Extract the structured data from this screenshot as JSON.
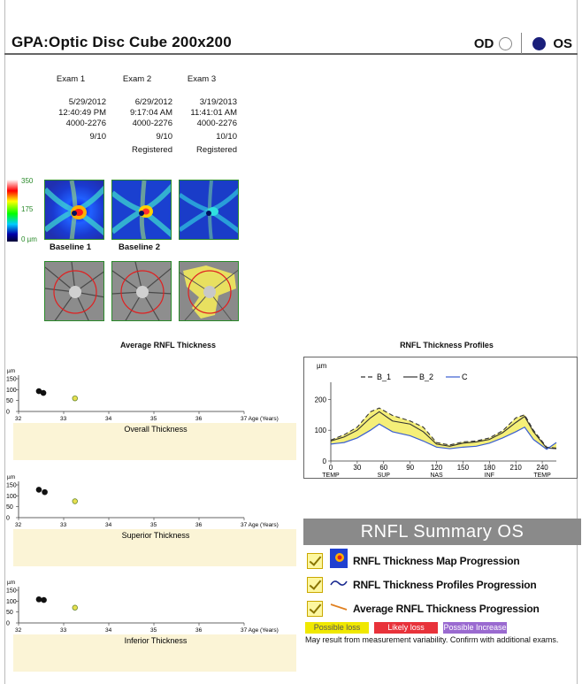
{
  "header": {
    "title": "GPA:Optic Disc Cube 200x200",
    "od_label": "OD",
    "os_label": "OS",
    "selected_eye": "OS"
  },
  "exams": [
    {
      "name": "Exam 1",
      "date": "5/29/2012",
      "time": "12:40:49 PM",
      "serial": "4000-2276",
      "ss": "9/10",
      "reg": ""
    },
    {
      "name": "Exam 2",
      "date": "6/29/2012",
      "time": "9:17:04 AM",
      "serial": "4000-2276",
      "ss": "9/10",
      "reg": "Registered"
    },
    {
      "name": "Exam 3",
      "date": "3/19/2013",
      "time": "11:41:01 AM",
      "serial": "4000-2276",
      "ss": "10/10",
      "reg": "Registered"
    }
  ],
  "scale": {
    "top": "350",
    "mid": "175",
    "bottom": "0 µm"
  },
  "baselines": {
    "b1": "Baseline 1",
    "b2": "Baseline 2"
  },
  "avg_section_title": "Average RNFL Thickness",
  "profiles_section_title": "RNFL Thickness Profiles",
  "trend_axis": {
    "unit": "µm",
    "yticks": [
      "150",
      "100",
      "50",
      "0"
    ],
    "xticks": [
      "32",
      "33",
      "34",
      "35",
      "36",
      "37 Age (Years)"
    ]
  },
  "trends": [
    {
      "label": "Overall Thickness",
      "points": [
        [
          32.45,
          93
        ],
        [
          32.55,
          85
        ],
        [
          33.25,
          60
        ]
      ]
    },
    {
      "label": "Superior Thickness",
      "points": [
        [
          32.45,
          128
        ],
        [
          32.58,
          117
        ],
        [
          33.25,
          75
        ]
      ]
    },
    {
      "label": "Inferior Thickness",
      "points": [
        [
          32.45,
          108
        ],
        [
          32.56,
          105
        ],
        [
          33.25,
          70
        ]
      ]
    }
  ],
  "chart_data": {
    "type": "line",
    "title": "RNFL Thickness Profiles",
    "ylabel": "µm",
    "ylim": [
      0,
      250
    ],
    "yticks": [
      "0",
      "100",
      "200"
    ],
    "xticks": [
      {
        "v": "0",
        "sub": "TEMP"
      },
      {
        "v": "30",
        "sub": ""
      },
      {
        "v": "60",
        "sub": "SUP"
      },
      {
        "v": "90",
        "sub": ""
      },
      {
        "v": "120",
        "sub": "NAS"
      },
      {
        "v": "150",
        "sub": ""
      },
      {
        "v": "180",
        "sub": "INF"
      },
      {
        "v": "210",
        "sub": ""
      },
      {
        "v": "240",
        "sub": "TEMP"
      }
    ],
    "x": [
      0,
      15,
      30,
      45,
      55,
      70,
      90,
      105,
      120,
      135,
      150,
      165,
      180,
      195,
      210,
      220,
      230,
      245,
      256
    ],
    "series": [
      {
        "name": "B_1",
        "values": [
          68,
          85,
          110,
          160,
          172,
          148,
          130,
          110,
          60,
          52,
          62,
          65,
          75,
          98,
          140,
          150,
          100,
          45,
          42
        ]
      },
      {
        "name": "B_2",
        "values": [
          65,
          78,
          100,
          140,
          160,
          130,
          120,
          95,
          55,
          48,
          58,
          62,
          70,
          92,
          125,
          145,
          95,
          42,
          40
        ]
      },
      {
        "name": "C",
        "values": [
          55,
          60,
          75,
          100,
          120,
          95,
          82,
          65,
          45,
          40,
          45,
          48,
          58,
          75,
          95,
          110,
          70,
          38,
          60
        ]
      }
    ]
  },
  "summary": {
    "title": "RNFL Summary OS",
    "rows": [
      "RNFL Thickness Map Progression",
      "RNFL Thickness Profiles Progression",
      "Average RNFL Thickness Progression"
    ],
    "badges": {
      "possible_loss": "Possible loss",
      "likely_loss": "Likely loss",
      "possible_increase": "Possible Increase"
    },
    "note": "May result from measurement variability. Confirm with additional exams.",
    "colors": {
      "possible_loss": "#f0e800",
      "likely_loss": "#e8323a",
      "possible_increase": "#9a6ad0"
    }
  }
}
